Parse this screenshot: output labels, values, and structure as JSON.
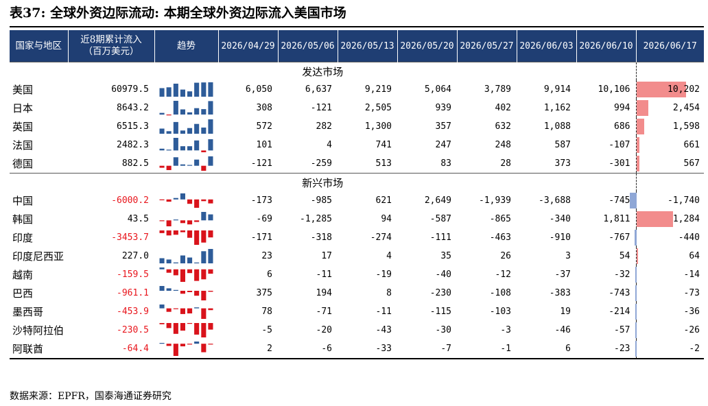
{
  "title": "表37:  全球外资边际流动:  本期全球外资边际流入美国市场",
  "header": {
    "country": "国家与地区",
    "cum_line1": "近8期累计流入",
    "cum_line2": "（百万美元）",
    "trend": "趋势",
    "dates": [
      "2026/04/29",
      "2026/05/06",
      "2026/05/13",
      "2026/05/20",
      "2026/05/27",
      "2026/06/03",
      "2026/06/10",
      "2026/06/17"
    ]
  },
  "colors": {
    "header_bg": "#1f3e73",
    "bar_positive": "#2e5c99",
    "bar_negative": "#d9131b",
    "last_positive": "#f28c8c",
    "last_negative": "#8fa7d6",
    "neg_text": "#e8141b"
  },
  "sections": [
    {
      "name": "发达市场",
      "rows": [
        {
          "name": "美国",
          "cum": "60979.5",
          "values": [
            6050,
            6637,
            9219,
            5064,
            3789,
            9914,
            10106,
            10202
          ],
          "display": [
            "6,050",
            "6,637",
            "9,219",
            "5,064",
            "3,789",
            "9,914",
            "10,106",
            "10,202"
          ]
        },
        {
          "name": "日本",
          "cum": "8643.2",
          "values": [
            308,
            -121,
            2505,
            939,
            402,
            1162,
            994,
            2454
          ],
          "display": [
            "308",
            "-121",
            "2,505",
            "939",
            "402",
            "1,162",
            "994",
            "2,454"
          ]
        },
        {
          "name": "英国",
          "cum": "6515.3",
          "values": [
            572,
            282,
            1300,
            357,
            632,
            1088,
            686,
            1598
          ],
          "display": [
            "572",
            "282",
            "1,300",
            "357",
            "632",
            "1,088",
            "686",
            "1,598"
          ]
        },
        {
          "name": "法国",
          "cum": "2482.3",
          "values": [
            101,
            4,
            741,
            247,
            248,
            587,
            -107,
            661
          ],
          "display": [
            "101",
            "4",
            "741",
            "247",
            "248",
            "587",
            "-107",
            "661"
          ]
        },
        {
          "name": "德国",
          "cum": "882.5",
          "values": [
            -121,
            -259,
            513,
            83,
            28,
            373,
            -301,
            567
          ],
          "display": [
            "-121",
            "-259",
            "513",
            "83",
            "28",
            "373",
            "-301",
            "567"
          ]
        }
      ]
    },
    {
      "name": "新兴市场",
      "rows": [
        {
          "name": "中国",
          "cum": "-6000.2",
          "values": [
            -173,
            -985,
            621,
            2649,
            -1939,
            -3688,
            -745,
            -1740
          ],
          "display": [
            "-173",
            "-985",
            "621",
            "2,649",
            "-1,939",
            "-3,688",
            "-745",
            "-1,740"
          ]
        },
        {
          "name": "韩国",
          "cum": "43.5",
          "values": [
            -69,
            -1285,
            94,
            -587,
            -865,
            -340,
            1811,
            1284
          ],
          "display": [
            "-69",
            "-1,285",
            "94",
            "-587",
            "-865",
            "-340",
            "1,811",
            "1,284"
          ]
        },
        {
          "name": "印度",
          "cum": "-3453.7",
          "values": [
            -171,
            -318,
            -274,
            -111,
            -463,
            -910,
            -767,
            -440
          ],
          "display": [
            "-171",
            "-318",
            "-274",
            "-111",
            "-463",
            "-910",
            "-767",
            "-440"
          ]
        },
        {
          "name": "印度尼西亚",
          "cum": "227.0",
          "values": [
            23,
            17,
            4,
            35,
            26,
            3,
            54,
            64
          ],
          "display": [
            "23",
            "17",
            "4",
            "35",
            "26",
            "3",
            "54",
            "64"
          ]
        },
        {
          "name": "越南",
          "cum": "-159.5",
          "values": [
            6,
            -11,
            -19,
            -40,
            -12,
            -37,
            -32,
            -14
          ],
          "display": [
            "6",
            "-11",
            "-19",
            "-40",
            "-12",
            "-37",
            "-32",
            "-14"
          ]
        },
        {
          "name": "巴西",
          "cum": "-961.1",
          "values": [
            375,
            194,
            8,
            -230,
            -108,
            -383,
            -743,
            -73
          ],
          "display": [
            "375",
            "194",
            "8",
            "-230",
            "-108",
            "-383",
            "-743",
            "-73"
          ]
        },
        {
          "name": "墨西哥",
          "cum": "-453.9",
          "values": [
            78,
            -71,
            -11,
            -115,
            -103,
            19,
            -214,
            -36
          ],
          "display": [
            "78",
            "-71",
            "-11",
            "-115",
            "-103",
            "19",
            "-214",
            "-36"
          ]
        },
        {
          "name": "沙特阿拉伯",
          "cum": "-230.5",
          "values": [
            -5,
            -20,
            -43,
            -30,
            -3,
            -46,
            -57,
            -26
          ],
          "display": [
            "-5",
            "-20",
            "-43",
            "-30",
            "-3",
            "-46",
            "-57",
            "-26"
          ]
        },
        {
          "name": "阿联酋",
          "cum": "-64.4",
          "values": [
            2,
            -6,
            -33,
            -7,
            -1,
            6,
            -23,
            -2
          ],
          "display": [
            "2",
            "-6",
            "-33",
            "-7",
            "-1",
            "6",
            "-23",
            "-2"
          ]
        }
      ]
    }
  ],
  "source": "数据来源：EPFR，国泰海通证券研究"
}
